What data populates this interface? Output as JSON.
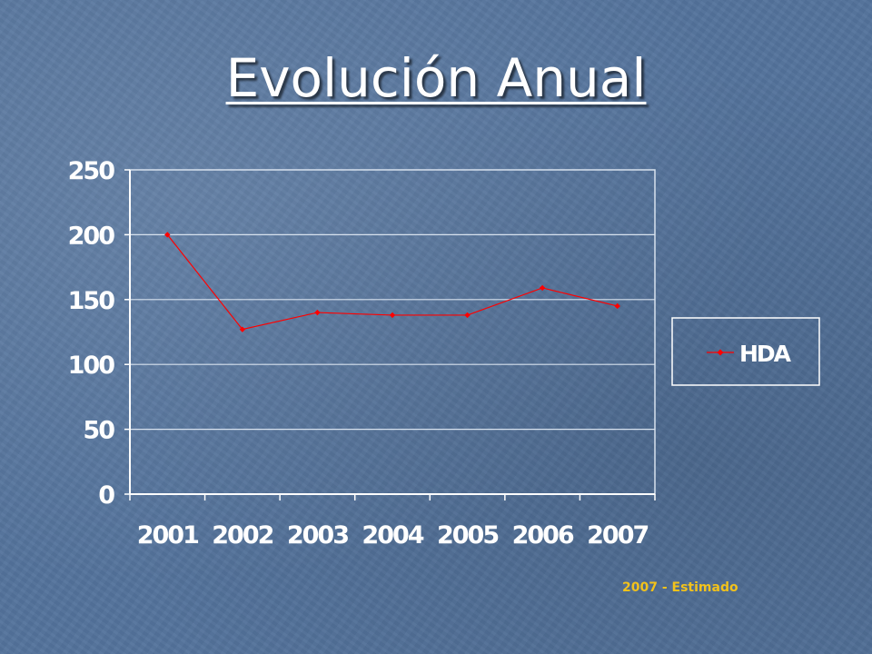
{
  "slide": {
    "title": "Evolución Anual",
    "footnote": "2007 - Estimado"
  },
  "chart_data": {
    "type": "line",
    "x": [
      "2001",
      "2002",
      "2003",
      "2004",
      "2005",
      "2006",
      "2007"
    ],
    "series": [
      {
        "name": "HDA",
        "values": [
          200,
          127,
          140,
          138,
          138,
          159,
          145
        ],
        "color": "#ff0000"
      }
    ],
    "ylim": [
      0,
      250
    ],
    "yticks": [
      0,
      50,
      100,
      150,
      200,
      250
    ],
    "grid": true,
    "legend": "right",
    "title": "",
    "xlabel": "",
    "ylabel": ""
  }
}
